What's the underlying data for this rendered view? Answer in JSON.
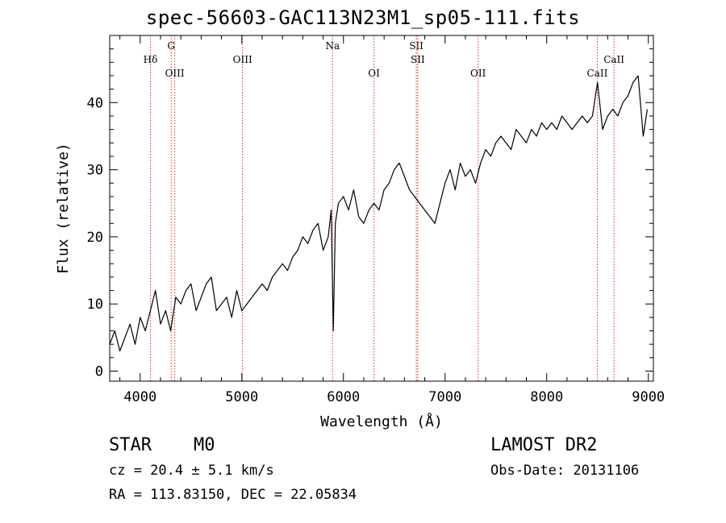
{
  "chart_data": {
    "type": "line",
    "title": "spec-56603-GAC113N23M1_sp05-111.fits",
    "xlabel": "Wavelength (Å)",
    "ylabel": "Flux (relative)",
    "xlim": [
      3700,
      9050
    ],
    "ylim": [
      -1.5,
      50
    ],
    "x_ticks": [
      4000,
      5000,
      6000,
      7000,
      8000,
      9000
    ],
    "y_ticks": [
      0,
      10,
      20,
      30,
      40
    ],
    "grid": false,
    "series": [
      {
        "color": "#000000",
        "x": [
          3700,
          3750,
          3800,
          3850,
          3900,
          3950,
          4000,
          4050,
          4100,
          4150,
          4200,
          4250,
          4300,
          4350,
          4400,
          4450,
          4500,
          4550,
          4600,
          4650,
          4700,
          4750,
          4800,
          4850,
          4900,
          4950,
          5000,
          5050,
          5100,
          5150,
          5200,
          5250,
          5300,
          5350,
          5400,
          5450,
          5500,
          5550,
          5600,
          5650,
          5700,
          5750,
          5800,
          5850,
          5880,
          5900,
          5920,
          5950,
          6000,
          6050,
          6100,
          6150,
          6200,
          6250,
          6300,
          6350,
          6400,
          6450,
          6500,
          6550,
          6600,
          6650,
          6700,
          6750,
          6800,
          6850,
          6900,
          6950,
          7000,
          7050,
          7100,
          7150,
          7200,
          7250,
          7300,
          7350,
          7400,
          7450,
          7500,
          7550,
          7600,
          7650,
          7700,
          7750,
          7800,
          7850,
          7900,
          7950,
          8000,
          8050,
          8100,
          8150,
          8200,
          8250,
          8300,
          8350,
          8400,
          8450,
          8500,
          8550,
          8600,
          8650,
          8700,
          8750,
          8800,
          8850,
          8900,
          8950,
          8990
        ],
        "y": [
          4,
          6,
          3,
          5,
          7,
          4,
          8,
          6,
          9,
          12,
          7,
          9,
          6,
          11,
          10,
          12,
          13,
          9,
          11,
          13,
          14,
          9,
          10,
          11,
          8,
          12,
          9,
          10,
          11,
          12,
          13,
          12,
          14,
          15,
          16,
          15,
          17,
          18,
          20,
          19,
          21,
          22,
          18,
          20,
          24,
          6,
          22,
          25,
          26,
          24,
          27,
          23,
          22,
          24,
          25,
          24,
          27,
          28,
          30,
          31,
          29,
          27,
          26,
          25,
          24,
          23,
          22,
          25,
          28,
          30,
          27,
          31,
          29,
          30,
          28,
          31,
          33,
          32,
          34,
          35,
          34,
          33,
          36,
          35,
          34,
          36,
          35,
          37,
          36,
          37,
          36,
          38,
          37,
          36,
          37,
          38,
          37,
          38,
          43,
          36,
          38,
          39,
          38,
          40,
          41,
          43,
          44,
          35,
          39
        ]
      }
    ],
    "spectral_lines": [
      {
        "label": "Hδ",
        "x": 4101,
        "label_row": "high"
      },
      {
        "label": "G",
        "x": 4305,
        "label_row": "top"
      },
      {
        "label": "OIII",
        "x": 4340,
        "label_row": "low"
      },
      {
        "label": "OIII",
        "x": 5007,
        "label_row": "high"
      },
      {
        "label": "Na",
        "x": 5893,
        "label_row": "top"
      },
      {
        "label": "OI",
        "x": 6300,
        "label_row": "low"
      },
      {
        "label": "SII",
        "x": 6717,
        "label_row": "top"
      },
      {
        "label": "SII",
        "x": 6731,
        "label_row": "high"
      },
      {
        "label": "OII",
        "x": 7325,
        "label_row": "low"
      },
      {
        "label": "CaII",
        "x": 8498,
        "label_row": "low"
      },
      {
        "label": "CaII",
        "x": 8662,
        "label_row": "high"
      }
    ],
    "line_color": "#d23a2a"
  },
  "info": {
    "object_class": "STAR",
    "subclass": "M0",
    "survey": "LAMOST DR2",
    "cz": "cz = 20.4 ± 5.1 km/s",
    "obs_date": "Obs-Date: 20131106",
    "coords": "RA = 113.83150, DEC =  22.05834"
  }
}
